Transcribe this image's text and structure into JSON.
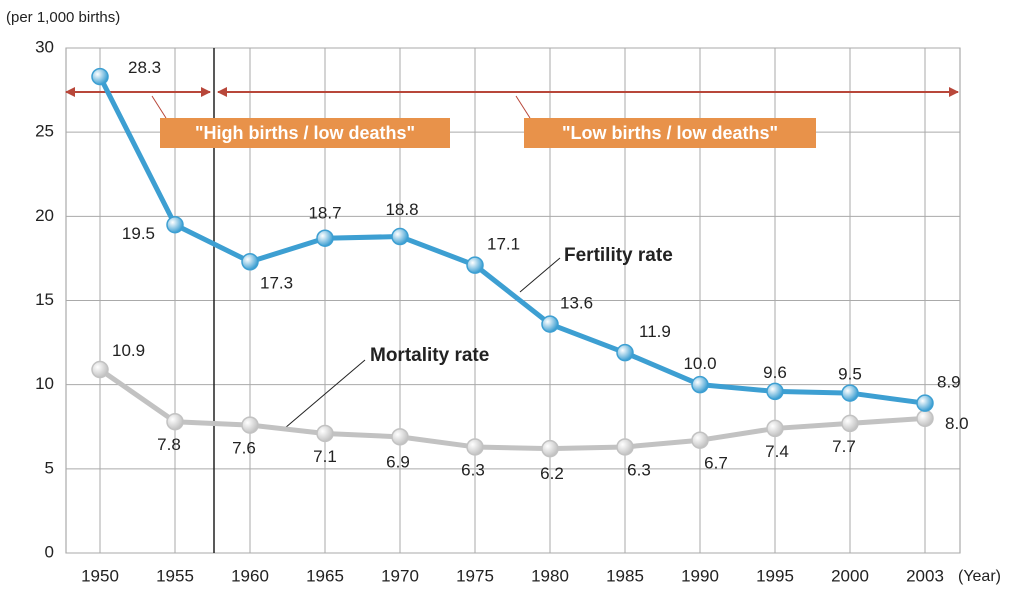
{
  "chart_data": {
    "type": "line",
    "y_axis_label": "(per 1,000 births)",
    "x_axis_label": "(Year)",
    "categories": [
      "1950",
      "1955",
      "1960",
      "1965",
      "1970",
      "1975",
      "1980",
      "1985",
      "1990",
      "1995",
      "2000",
      "2003"
    ],
    "series": [
      {
        "name": "Fertility rate",
        "color": "#3d9fd2",
        "values": [
          28.3,
          19.5,
          17.3,
          18.7,
          18.8,
          17.1,
          13.6,
          11.9,
          10.0,
          9.6,
          9.5,
          8.9
        ],
        "value_labels": [
          "28.3",
          "19.5",
          "17.3",
          "18.7",
          "18.8",
          "17.1",
          "13.6",
          "11.9",
          "10.0",
          "9.6",
          "9.5",
          "8.9"
        ]
      },
      {
        "name": "Mortality rate",
        "color": "#c2c2c2",
        "values": [
          10.9,
          7.8,
          7.6,
          7.1,
          6.9,
          6.3,
          6.2,
          6.3,
          6.7,
          7.4,
          7.7,
          8.0
        ],
        "value_labels": [
          "10.9",
          "7.8",
          "7.6",
          "7.1",
          "6.9",
          "6.3",
          "6.2",
          "6.3",
          "6.7",
          "7.4",
          "7.7",
          "8.0"
        ]
      }
    ],
    "annotations": [
      "\"High births / low deaths\"",
      "\"Low births / low deaths\""
    ],
    "ylim": [
      0,
      30
    ],
    "yticks": [
      0,
      5,
      10,
      15,
      20,
      25,
      30
    ],
    "grid": true
  }
}
